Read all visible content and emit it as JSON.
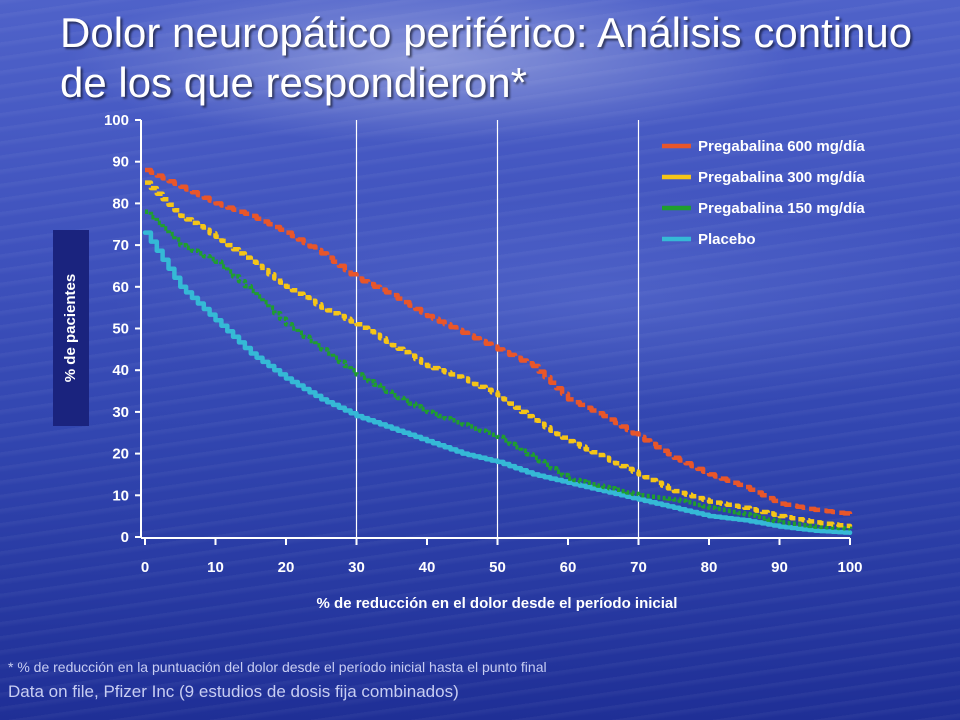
{
  "slide": {
    "title": "Dolor neuropático periférico:  Análisis continuo de los que respondieron*",
    "footnote": "* % de reducción en la puntuación del dolor desde el período inicial  hasta el punto final",
    "source": "Data on file, Pfizer Inc (9 estudios de dosis fija combinados)"
  },
  "chart_data": {
    "type": "line",
    "title": "",
    "xlabel": "% de reducción en el dolor desde el período inicial",
    "ylabel": "% de pacientes",
    "xlim": [
      0,
      100
    ],
    "ylim": [
      0,
      100
    ],
    "x_ticks": [
      "0",
      "10",
      "20",
      "30",
      "40",
      "50",
      "60",
      "70",
      "80",
      "90",
      "100"
    ],
    "y_ticks": [
      "0",
      "10",
      "20",
      "30",
      "40",
      "50",
      "60",
      "70",
      "80",
      "90",
      "100"
    ],
    "vertical_reference_lines": [
      30,
      50,
      70
    ],
    "legend_position": "top-right",
    "x": [
      0,
      5,
      10,
      15,
      20,
      25,
      30,
      35,
      40,
      45,
      50,
      55,
      60,
      65,
      70,
      75,
      80,
      85,
      90,
      95,
      100
    ],
    "series": [
      {
        "name": "Pregabalina 600 mg/día",
        "color": "#e8562a",
        "dash": "long-dash",
        "values": [
          88,
          84,
          80,
          77,
          73,
          68,
          62,
          58,
          53,
          49,
          45,
          41,
          33,
          29,
          24,
          19,
          15,
          12,
          8,
          6.5,
          5.5
        ]
      },
      {
        "name": "Pregabalina 300 mg/día",
        "color": "#f5c518",
        "dash": "short-dash",
        "values": [
          85,
          77,
          72,
          66,
          60,
          55,
          51,
          46,
          41,
          38,
          34,
          28,
          23,
          19,
          15,
          11,
          8.5,
          7,
          5,
          3.5,
          2.5
        ]
      },
      {
        "name": "Pregabalina 150 mg/día",
        "color": "#1f9e2e",
        "dash": "dotted",
        "values": [
          78,
          70,
          66,
          59,
          51,
          45,
          39,
          34,
          30,
          27,
          24,
          19,
          14,
          12,
          10,
          9,
          7,
          5.5,
          3.5,
          2.5,
          2
        ]
      },
      {
        "name": "Placebo",
        "color": "#35b9d6",
        "dash": "solid",
        "values": [
          73,
          60,
          52,
          44,
          38,
          33,
          29,
          26,
          23,
          20,
          18,
          15,
          13,
          11,
          9,
          7,
          5,
          4,
          2.5,
          1.5,
          1
        ]
      }
    ]
  }
}
